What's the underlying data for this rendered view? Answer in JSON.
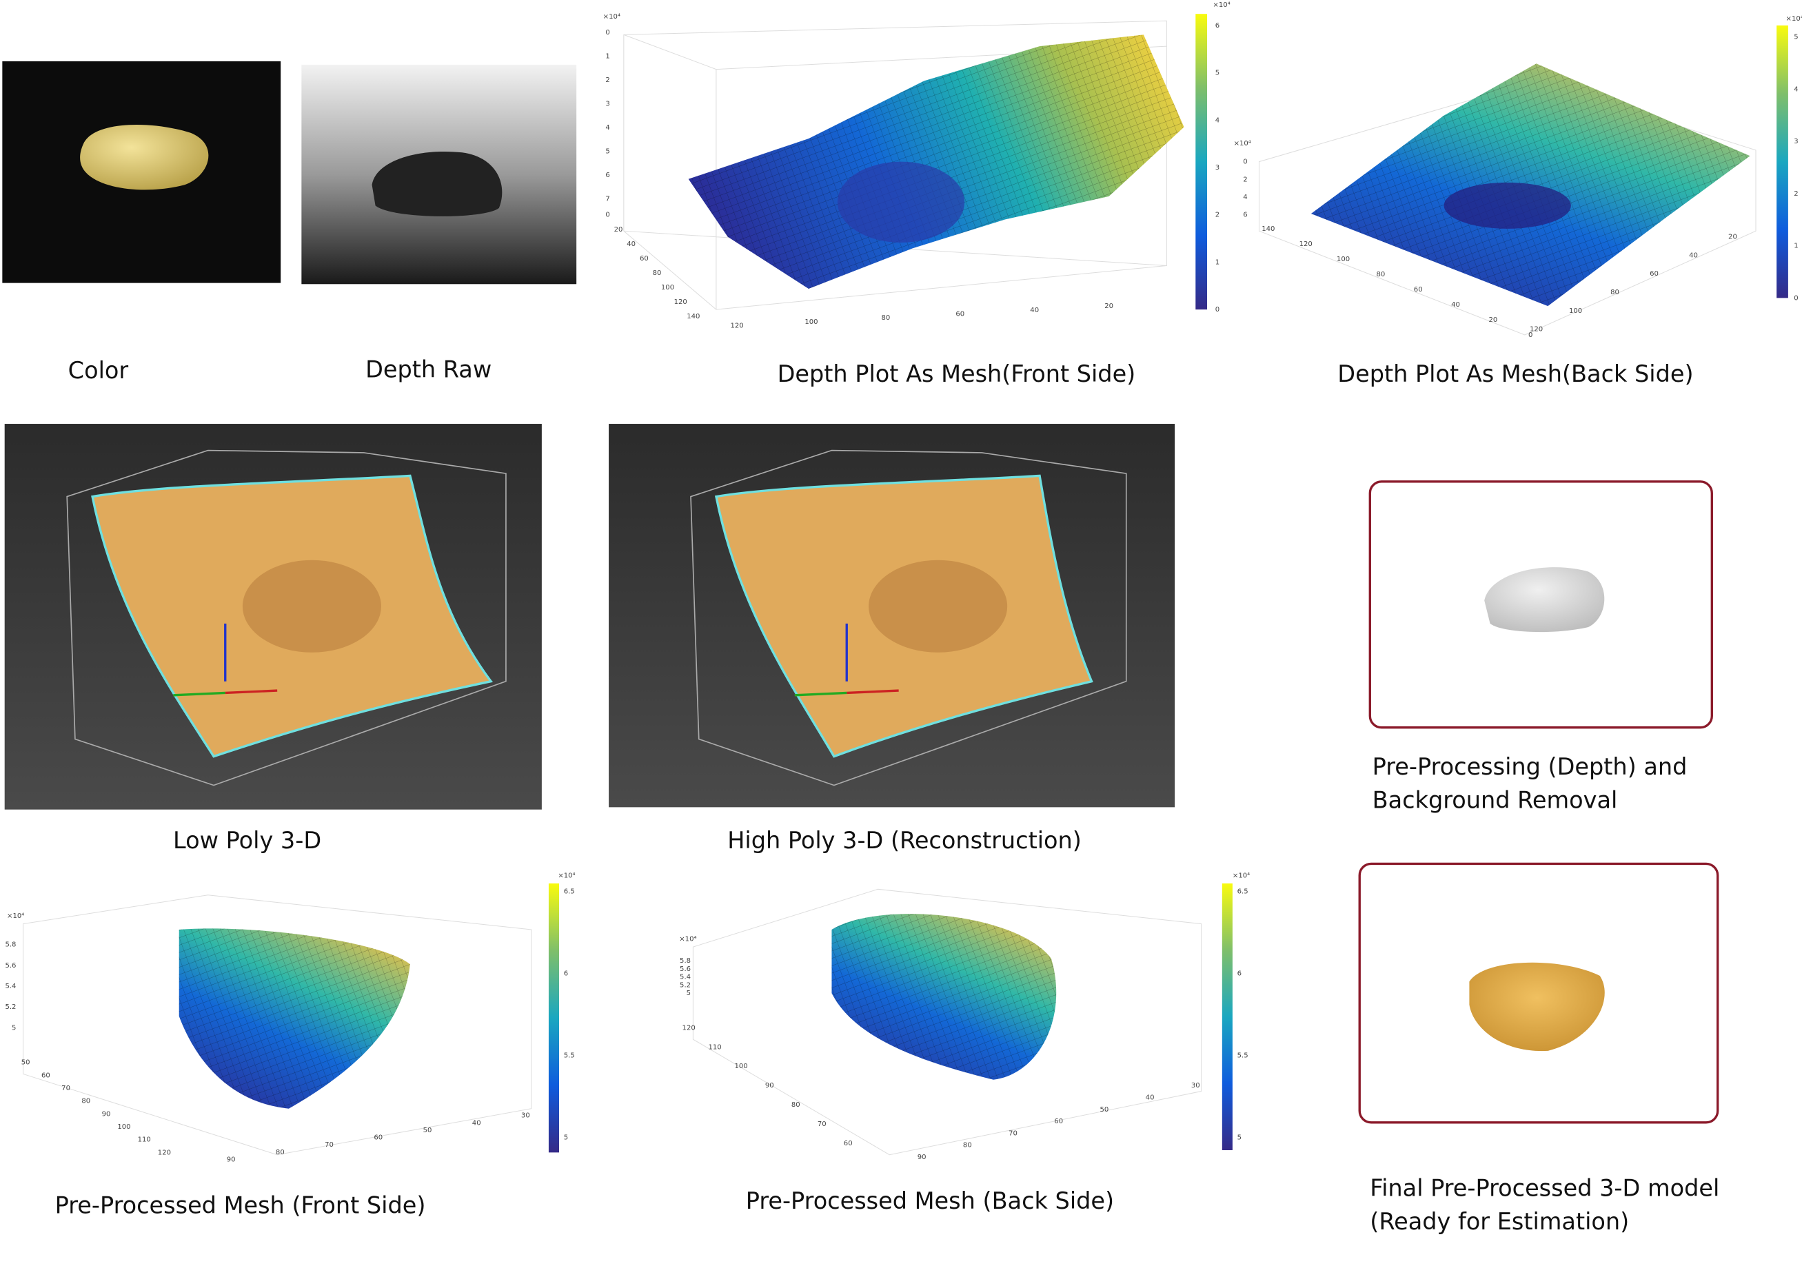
{
  "panels": {
    "color": {
      "caption": "Color"
    },
    "depth_raw": {
      "caption": "Depth Raw"
    },
    "mesh_front": {
      "caption": "Depth Plot As Mesh(Front Side)",
      "exponent": "×10⁴",
      "z_ticks": [
        0,
        1,
        2,
        3,
        4,
        5,
        6,
        7
      ],
      "y_ticks": [
        0,
        20,
        40,
        60,
        80,
        100,
        120,
        140
      ],
      "x_ticks": [
        120,
        100,
        80,
        60,
        40,
        20
      ],
      "colorbar_ticks": [
        0,
        1,
        2,
        3,
        4,
        5,
        6
      ],
      "colorbar_exponent": "×10⁴"
    },
    "mesh_back": {
      "caption": "Depth Plot As Mesh(Back Side)",
      "exponent": "×10⁴",
      "z_ticks": [
        0,
        2,
        4,
        6
      ],
      "x_ticks": [
        140,
        120,
        100,
        80,
        60,
        40,
        20,
        0
      ],
      "y_ticks": [
        120,
        100,
        80,
        60,
        40,
        20
      ],
      "colorbar_ticks": [
        0,
        1,
        2,
        3,
        4,
        5
      ],
      "colorbar_exponent": "×10⁴"
    },
    "low_poly": {
      "caption": "Low Poly 3-D"
    },
    "high_poly": {
      "caption": "High Poly 3-D (Reconstruction)"
    },
    "background_removal": {
      "caption_lines": [
        "Pre-Processing (Depth) and",
        "Background Removal"
      ]
    },
    "prepro_front": {
      "caption": "Pre-Processed Mesh (Front Side)",
      "exponent": "×10⁴",
      "z_ticks": [
        5,
        5.2,
        5.4,
        5.6,
        5.8
      ],
      "y_ticks": [
        50,
        60,
        70,
        80,
        90,
        100,
        110,
        120
      ],
      "x_ticks": [
        90,
        80,
        70,
        60,
        50,
        40,
        30
      ],
      "colorbar_ticks": [
        5,
        5.5,
        6,
        6.5
      ],
      "colorbar_exponent": "×10⁴"
    },
    "prepro_back": {
      "caption": "Pre-Processed Mesh (Back Side)",
      "exponent": "×10⁴",
      "z_ticks": [
        5,
        5.2,
        5.4,
        5.6,
        5.8
      ],
      "y_ticks": [
        120,
        110,
        100,
        90,
        80,
        70,
        60
      ],
      "x_ticks": [
        90,
        80,
        70,
        60,
        50,
        40,
        30
      ],
      "colorbar_ticks": [
        5,
        5.5,
        6,
        6.5
      ],
      "colorbar_exponent": "×10⁴"
    },
    "final_model": {
      "caption_lines": [
        "Final Pre-Processed 3-D model",
        "(Ready for Estimation)"
      ]
    }
  }
}
